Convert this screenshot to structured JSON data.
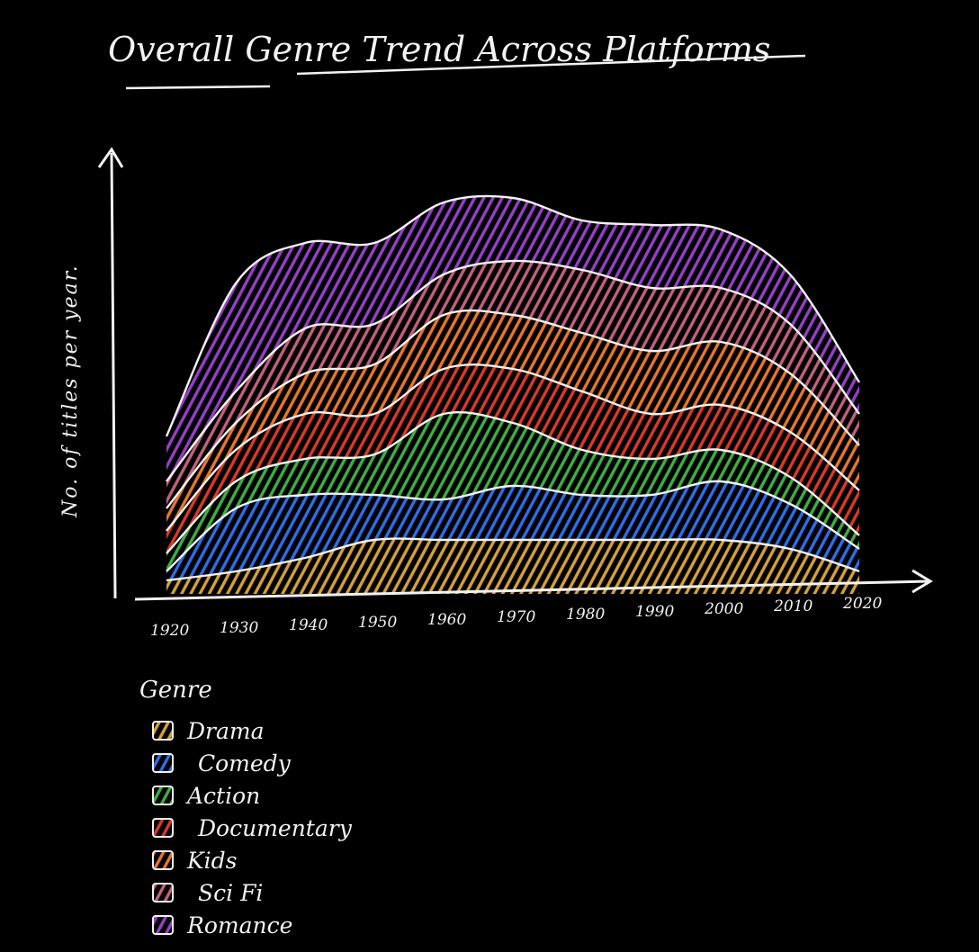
{
  "chart_data": {
    "type": "area",
    "stacked": true,
    "title": "Overall Genre Trend Across Platforms",
    "xlabel": "",
    "ylabel": "No. of titles per year.",
    "categories": [
      "1920",
      "1930",
      "1940",
      "1950",
      "1960",
      "1970",
      "1980",
      "1990",
      "2000",
      "2010",
      "2020"
    ],
    "ylim": [
      0,
      100
    ],
    "series": [
      {
        "name": "Drama",
        "color": "#d4a13a",
        "values": [
          3,
          5,
          8,
          12,
          12,
          12,
          12,
          12,
          12,
          10,
          5
        ]
      },
      {
        "name": "Comedy",
        "color": "#2f6ee6",
        "values": [
          2,
          14,
          14,
          10,
          9,
          12,
          10,
          10,
          13,
          10,
          5
        ]
      },
      {
        "name": "Action",
        "color": "#3fae45",
        "values": [
          4,
          6,
          8,
          9,
          19,
          14,
          10,
          8,
          7,
          6,
          3
        ]
      },
      {
        "name": "Documentary",
        "color": "#d93a2a",
        "values": [
          5,
          7,
          10,
          9,
          10,
          12,
          13,
          10,
          10,
          10,
          10
        ]
      },
      {
        "name": "Kids",
        "color": "#e8772b",
        "values": [
          5,
          6,
          9,
          11,
          12,
          12,
          13,
          14,
          14,
          13,
          10
        ]
      },
      {
        "name": "Sci Fi",
        "color": "#c2607e",
        "values": [
          6,
          7,
          10,
          9,
          9,
          12,
          14,
          14,
          12,
          11,
          7
        ]
      },
      {
        "name": "Romance",
        "color": "#9540c7",
        "values": [
          10,
          24,
          19,
          18,
          16,
          14,
          11,
          14,
          13,
          11,
          7
        ]
      }
    ],
    "legend": {
      "title": "Genre",
      "position": "bottom-left"
    },
    "grid": false
  }
}
